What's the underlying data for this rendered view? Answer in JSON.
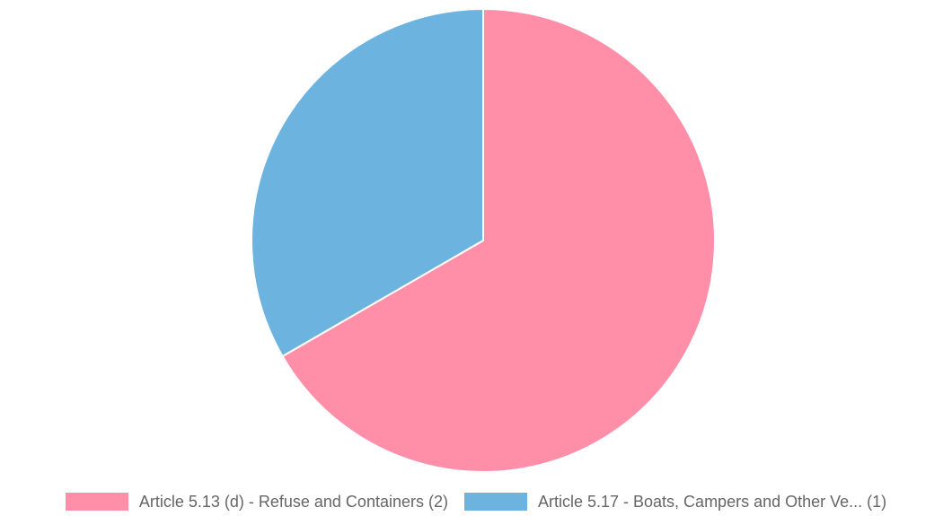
{
  "chart_data": {
    "type": "pie",
    "title": "",
    "categories": [
      "Article 5.13 (d) - Refuse and Containers (2)",
      "Article 5.17 - Boats, Campers and Other Ve... (1)"
    ],
    "values": [
      2,
      1
    ],
    "colors": [
      "#ff8fa8",
      "#6db3df"
    ],
    "start_angle_deg": 0,
    "direction": "clockwise",
    "legend_position": "bottom"
  }
}
